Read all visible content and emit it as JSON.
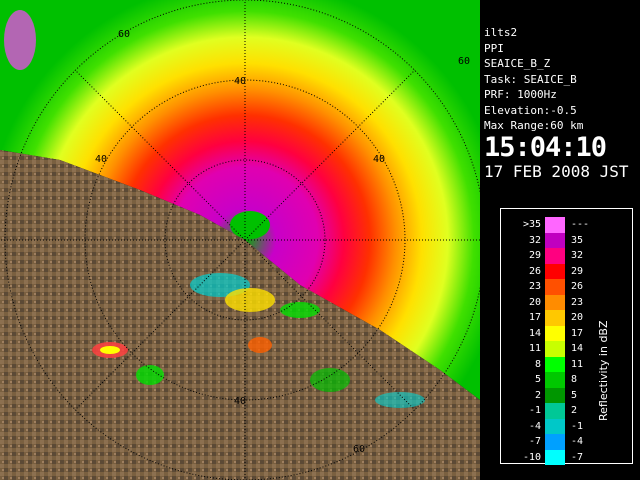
{
  "info": {
    "site": "ilts2",
    "scan_type": "PPI",
    "product": "SEAICE_B_Z",
    "task": "Task: SEAICE_B",
    "prf": "PRF: 1000Hz",
    "elevation": "Elevation:-0.5",
    "max_range": "Max Range:60 km",
    "time": "15:04:10",
    "date": "17 FEB 2008 JST"
  },
  "range_ring_labels": [
    "40",
    "60",
    "40",
    "60",
    "40",
    "40",
    "60"
  ],
  "legend": {
    "unit_label": "Reflectivity in dBZ",
    "rows": [
      {
        "lo": ">35",
        "hi": "---",
        "color": "#ff66ff"
      },
      {
        "lo": "32",
        "hi": "35",
        "color": "#c000c0"
      },
      {
        "lo": "29",
        "hi": "32",
        "color": "#ff0080"
      },
      {
        "lo": "26",
        "hi": "29",
        "color": "#ff0000"
      },
      {
        "lo": "23",
        "hi": "26",
        "color": "#ff5000"
      },
      {
        "lo": "20",
        "hi": "23",
        "color": "#ff8c00"
      },
      {
        "lo": "17",
        "hi": "20",
        "color": "#ffc800"
      },
      {
        "lo": "14",
        "hi": "17",
        "color": "#ffff00"
      },
      {
        "lo": "11",
        "hi": "14",
        "color": "#c8ff00"
      },
      {
        "lo": "8",
        "hi": "11",
        "color": "#00ff00"
      },
      {
        "lo": "5",
        "hi": "8",
        "color": "#00c800"
      },
      {
        "lo": "2",
        "hi": "5",
        "color": "#009600"
      },
      {
        "lo": "-1",
        "hi": "2",
        "color": "#00c896"
      },
      {
        "lo": "-4",
        "hi": "-1",
        "color": "#00c8c8"
      },
      {
        "lo": "-7",
        "hi": "-4",
        "color": "#00a0ff"
      },
      {
        "lo": "-10",
        "hi": "-7",
        "color": "#00ffff"
      }
    ]
  }
}
